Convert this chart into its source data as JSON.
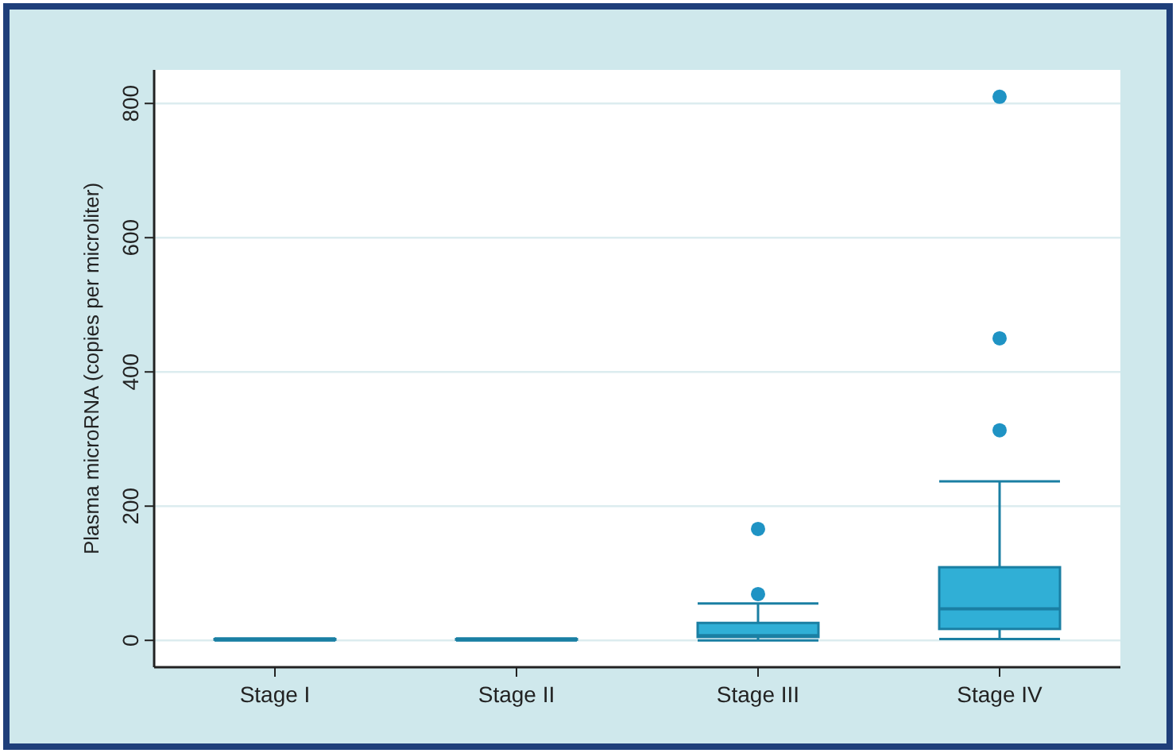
{
  "chart_data": {
    "type": "box",
    "ylabel": "Plasma microRNA (copies per microliter)",
    "categories": [
      "Stage I",
      "Stage II",
      "Stage III",
      "Stage IV"
    ],
    "boxes": [
      {
        "low": 0,
        "q1": 1,
        "median": 1,
        "q3": 2,
        "high": 3
      },
      {
        "low": 0,
        "q1": 1,
        "median": 1,
        "q3": 2,
        "high": 3
      },
      {
        "low": 0,
        "q1": 5,
        "median": 7,
        "q3": 26,
        "high": 55,
        "outliers": [
          69,
          166
        ]
      },
      {
        "low": 2,
        "q1": 17,
        "median": 47,
        "q3": 109,
        "high": 237,
        "outliers": [
          313,
          450,
          810
        ]
      }
    ],
    "color": "#30afd6",
    "ylim": [
      -40,
      850
    ],
    "yticks": [
      0,
      200,
      400,
      600,
      800
    ],
    "grid": "y"
  }
}
